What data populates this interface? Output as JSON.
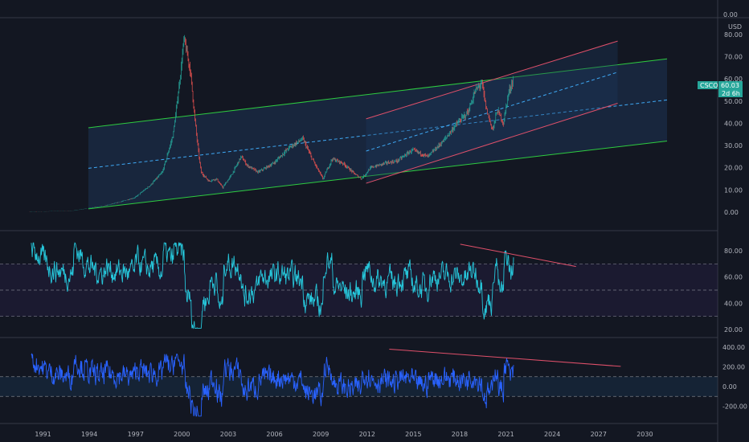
{
  "symbol": "CSCO",
  "currency": "USD",
  "price_label": "60.03",
  "countdown": "2d 6h",
  "top_axis_label": "0.00",
  "colors": {
    "background": "#131722",
    "grid": "#2a2e39",
    "up": "#26a69a",
    "down": "#ef5350",
    "green_channel": "#2ecc40",
    "red_channel": "#e0506a",
    "channel_fill": "#1e3a5f",
    "rsi_line": "#26c6da",
    "cci_line": "#2962ff",
    "badge": "#26a69a"
  },
  "x_axis_labels": [
    "1991",
    "1994",
    "1997",
    "2000",
    "2003",
    "2006",
    "2009",
    "2012",
    "2015",
    "2018",
    "2021",
    "2024",
    "2027",
    "2030"
  ],
  "chart_data": [
    {
      "type": "candlestick",
      "title": "CSCO",
      "ylabel": "USD",
      "x_years": [
        1990.2,
        2031.5
      ],
      "ylim": [
        0,
        85
      ],
      "y_ticks": [
        "80.00",
        "70.00",
        "60.00",
        "50.00",
        "40.00",
        "30.00",
        "20.00",
        "10.00",
        "0.00"
      ],
      "price_path": [
        [
          1990.2,
          0.1
        ],
        [
          1993.0,
          0.7
        ],
        [
          1994.0,
          1.8
        ],
        [
          1995.0,
          2.8
        ],
        [
          1996.0,
          4.5
        ],
        [
          1997.0,
          6.5
        ],
        [
          1998.0,
          12
        ],
        [
          1998.8,
          18
        ],
        [
          1999.5,
          35
        ],
        [
          1999.9,
          58
        ],
        [
          2000.2,
          78
        ],
        [
          2000.6,
          64
        ],
        [
          2001.0,
          35
        ],
        [
          2001.3,
          18
        ],
        [
          2001.8,
          14
        ],
        [
          2002.3,
          15
        ],
        [
          2002.7,
          11
        ],
        [
          2003.3,
          17
        ],
        [
          2003.9,
          25
        ],
        [
          2004.3,
          21
        ],
        [
          2005.0,
          18
        ],
        [
          2006.0,
          22
        ],
        [
          2007.0,
          29
        ],
        [
          2007.9,
          33
        ],
        [
          2008.5,
          24
        ],
        [
          2009.2,
          15
        ],
        [
          2009.8,
          24
        ],
        [
          2010.5,
          22
        ],
        [
          2011.3,
          17
        ],
        [
          2011.7,
          15
        ],
        [
          2012.3,
          20
        ],
        [
          2013.2,
          22
        ],
        [
          2014.0,
          23
        ],
        [
          2015.0,
          28
        ],
        [
          2016.0,
          25
        ],
        [
          2017.0,
          32
        ],
        [
          2017.9,
          40
        ],
        [
          2018.6,
          45
        ],
        [
          2019.1,
          55
        ],
        [
          2019.5,
          58
        ],
        [
          2019.8,
          46
        ],
        [
          2020.2,
          37
        ],
        [
          2020.5,
          46
        ],
        [
          2020.9,
          40
        ],
        [
          2021.2,
          53
        ],
        [
          2021.55,
          60.03
        ]
      ],
      "channels": [
        {
          "name": "green",
          "upper": [
            [
              1994.0,
              38
            ],
            [
              2031.5,
              69
            ]
          ],
          "lower": [
            [
              1994.0,
              1.5
            ],
            [
              2031.5,
              32
            ]
          ],
          "mid_dashed": true
        },
        {
          "name": "red",
          "upper": [
            [
              2012.0,
              42
            ],
            [
              2028.3,
              77
            ]
          ],
          "lower": [
            [
              2012.0,
              13
            ],
            [
              2028.3,
              49
            ]
          ],
          "mid_dashed": true
        }
      ]
    },
    {
      "type": "line",
      "title": "",
      "x_years": [
        1990.2,
        2031.5
      ],
      "ylim": [
        17,
        92
      ],
      "y_ticks": [
        "80.00",
        "60.00",
        "40.00",
        "20.00"
      ],
      "band": [
        30,
        70
      ],
      "midline": 50,
      "trend_line": [
        [
          2018.1,
          85
        ],
        [
          2025.6,
          68
        ]
      ]
    },
    {
      "type": "line",
      "title": "",
      "x_years": [
        1990.2,
        2031.5
      ],
      "ylim": [
        -330,
        420
      ],
      "y_ticks": [
        "400.00",
        "200.00",
        "0.00",
        "-200.00"
      ],
      "band": [
        -100,
        100
      ],
      "trend_line": [
        [
          2013.5,
          380
        ],
        [
          2028.5,
          205
        ]
      ]
    }
  ]
}
